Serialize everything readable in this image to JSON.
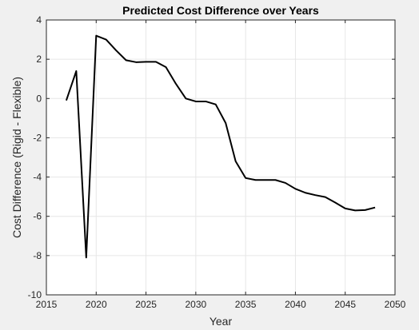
{
  "figure": {
    "background": "#f0f0f0",
    "axes_background": "#ffffff",
    "line_color": "#000000",
    "grid_color": "#e6e6e6"
  },
  "chart_data": {
    "type": "line",
    "title": "Predicted Cost Difference over Years",
    "xlabel": "Year",
    "ylabel": "Cost Difference (Rigid - Flexible)",
    "xlim": [
      2015,
      2050
    ],
    "ylim": [
      -10,
      4
    ],
    "xticks": [
      2015,
      2020,
      2025,
      2030,
      2035,
      2040,
      2045,
      2050
    ],
    "yticks": [
      -10,
      -8,
      -6,
      -4,
      -2,
      0,
      2,
      4
    ],
    "grid": true,
    "legend": "none",
    "series": [
      {
        "x": [
          2017,
          2018,
          2019,
          2020,
          2021,
          2022,
          2023,
          2024,
          2025,
          2026,
          2027,
          2028,
          2029,
          2030,
          2031,
          2032,
          2033,
          2034,
          2035,
          2036,
          2037,
          2038,
          2039,
          2040,
          2041,
          2042,
          2043,
          2044,
          2045,
          2046,
          2047,
          2048
        ],
        "y": [
          -0.1,
          1.4,
          -8.1,
          3.2,
          3.0,
          2.45,
          1.95,
          1.85,
          1.87,
          1.87,
          1.6,
          0.75,
          0.0,
          -0.15,
          -0.15,
          -0.3,
          -1.25,
          -3.2,
          -4.05,
          -4.15,
          -4.15,
          -4.15,
          -4.3,
          -4.6,
          -4.8,
          -4.92,
          -5.02,
          -5.3,
          -5.6,
          -5.7,
          -5.68,
          -5.55
        ]
      }
    ]
  }
}
